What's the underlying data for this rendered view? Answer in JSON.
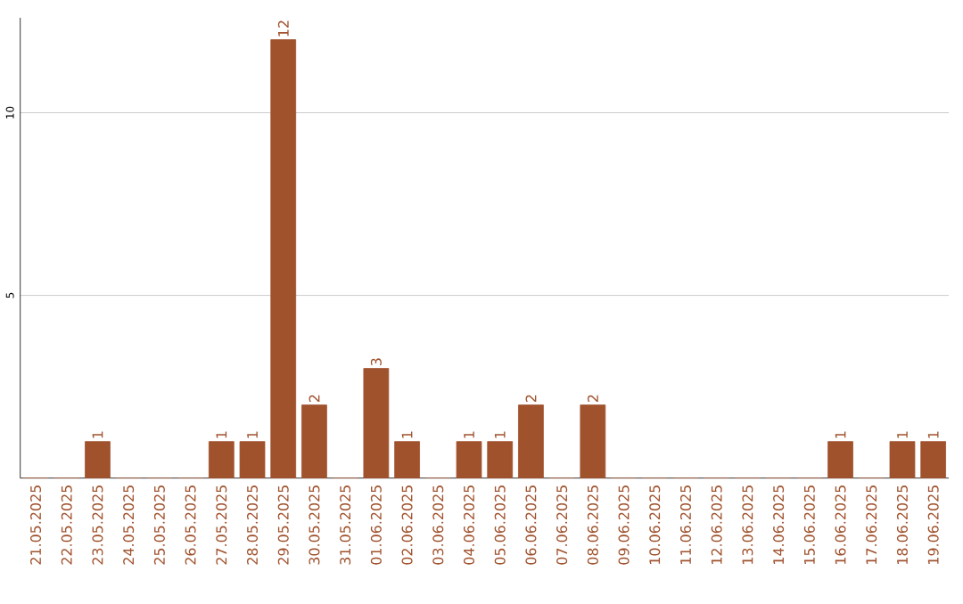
{
  "chart_data": {
    "type": "bar",
    "categories": [
      "21.05.2025",
      "22.05.2025",
      "23.05.2025",
      "24.05.2025",
      "25.05.2025",
      "26.05.2025",
      "27.05.2025",
      "28.05.2025",
      "29.05.2025",
      "30.05.2025",
      "31.05.2025",
      "01.06.2025",
      "02.06.2025",
      "03.06.2025",
      "04.06.2025",
      "05.06.2025",
      "06.06.2025",
      "07.06.2025",
      "08.06.2025",
      "09.06.2025",
      "10.06.2025",
      "11.06.2025",
      "12.06.2025",
      "13.06.2025",
      "14.06.2025",
      "15.06.2025",
      "16.06.2025",
      "17.06.2025",
      "18.06.2025",
      "19.06.2025"
    ],
    "values": [
      0,
      0,
      1,
      0,
      0,
      0,
      1,
      1,
      12,
      2,
      0,
      3,
      1,
      0,
      1,
      1,
      2,
      0,
      2,
      0,
      0,
      0,
      0,
      0,
      0,
      0,
      1,
      0,
      1,
      1
    ],
    "value_labels": [
      null,
      null,
      "1",
      null,
      null,
      null,
      "1",
      "1",
      "12",
      "2",
      null,
      "3",
      "1",
      null,
      "1",
      "1",
      "2",
      null,
      "2",
      null,
      null,
      null,
      null,
      null,
      null,
      null,
      "1",
      null,
      "1",
      "1"
    ],
    "color": "#a0522d",
    "ylim": [
      0,
      12.6
    ],
    "yticks": [
      5,
      10
    ],
    "grid": "y"
  }
}
